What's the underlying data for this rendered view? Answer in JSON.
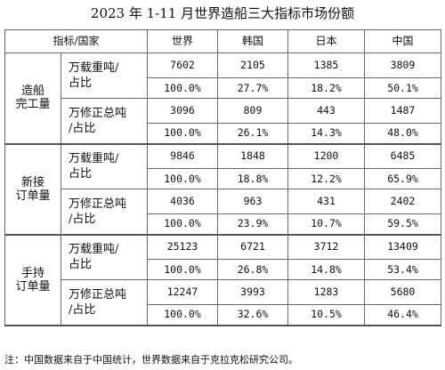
{
  "title": "2023 年 1-11 月世界造船三大指标市场份额",
  "header": {
    "corner": "指标/国家",
    "countries": [
      "世界",
      "韩国",
      "日本",
      "中国"
    ]
  },
  "groups": [
    {
      "label": "造船\n完工量",
      "metrics": [
        {
          "label": "万载重吨/\n占比",
          "values": [
            "7602",
            "2105",
            "1385",
            "3809"
          ],
          "shares": [
            "100.0%",
            "27.7%",
            "18.2%",
            "50.1%"
          ]
        },
        {
          "label": "万修正总吨\n/占比",
          "values": [
            "3096",
            "809",
            "443",
            "1487"
          ],
          "shares": [
            "100.0%",
            "26.1%",
            "14.3%",
            "48.0%"
          ]
        }
      ]
    },
    {
      "label": "新接\n订单量",
      "metrics": [
        {
          "label": "万载重吨/\n占比",
          "values": [
            "9846",
            "1848",
            "1200",
            "6485"
          ],
          "shares": [
            "100.0%",
            "18.8%",
            "12.2%",
            "65.9%"
          ]
        },
        {
          "label": "万修正总吨\n/占比",
          "values": [
            "4036",
            "963",
            "431",
            "2402"
          ],
          "shares": [
            "100.0%",
            "23.9%",
            "10.7%",
            "59.5%"
          ]
        }
      ]
    },
    {
      "label": "手持\n订单量",
      "metrics": [
        {
          "label": "万载重吨/\n占比",
          "values": [
            "25123",
            "6721",
            "3712",
            "13409"
          ],
          "shares": [
            "100.0%",
            "26.8%",
            "14.8%",
            "53.4%"
          ]
        },
        {
          "label": "万修正总吨\n/占比",
          "values": [
            "12247",
            "3993",
            "1283",
            "5680"
          ],
          "shares": [
            "100.0%",
            "32.6%",
            "10.5%",
            "46.4%"
          ]
        }
      ]
    }
  ],
  "note": "注：中国数据来自于中国统计，世界数据来自于克拉克松研究公司。"
}
